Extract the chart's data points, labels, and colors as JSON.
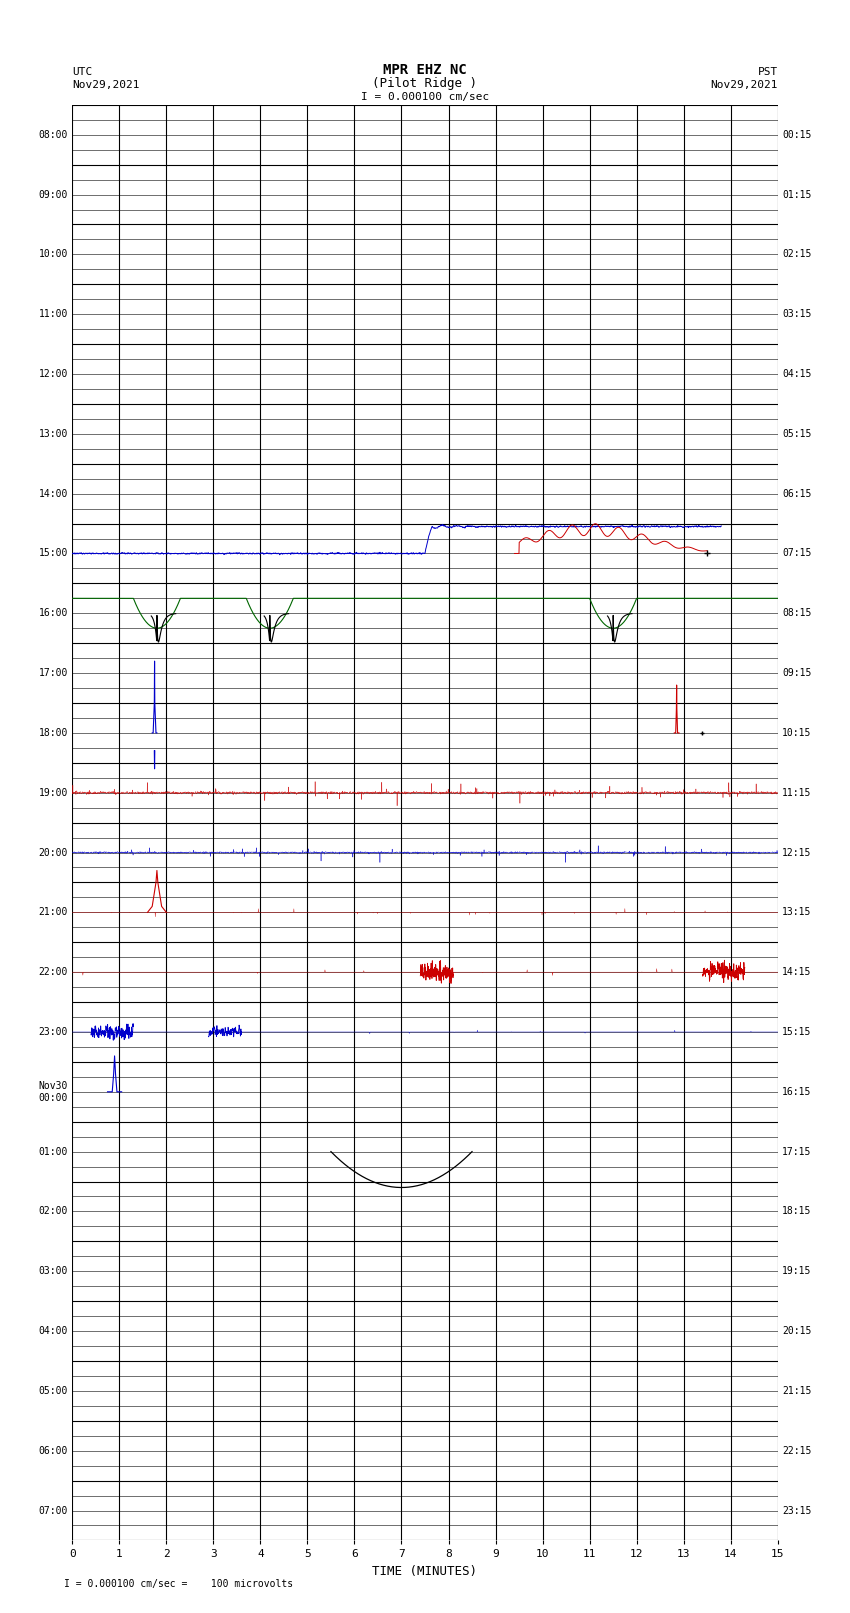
{
  "title_line1": "MPR EHZ NC",
  "title_line2": "(Pilot Ridge )",
  "title_scale": "I = 0.000100 cm/sec",
  "left_label_line1": "UTC",
  "left_label_line2": "Nov29,2021",
  "right_label_line1": "PST",
  "right_label_line2": "Nov29,2021",
  "bottom_note": "= 0.000100 cm/sec =    100 microvolts",
  "xlabel": "TIME (MINUTES)",
  "xlim": [
    0,
    15
  ],
  "xticks": [
    0,
    1,
    2,
    3,
    4,
    5,
    6,
    7,
    8,
    9,
    10,
    11,
    12,
    13,
    14,
    15
  ],
  "ytick_labels_left": [
    "08:00",
    "09:00",
    "10:00",
    "11:00",
    "12:00",
    "13:00",
    "14:00",
    "15:00",
    "16:00",
    "17:00",
    "18:00",
    "19:00",
    "20:00",
    "21:00",
    "22:00",
    "23:00",
    "Nov30\n00:00",
    "01:00",
    "02:00",
    "03:00",
    "04:00",
    "05:00",
    "06:00",
    "07:00"
  ],
  "ytick_labels_right": [
    "00:15",
    "01:15",
    "02:15",
    "03:15",
    "04:15",
    "05:15",
    "06:15",
    "07:15",
    "08:15",
    "09:15",
    "10:15",
    "11:15",
    "12:15",
    "13:15",
    "14:15",
    "15:15",
    "16:15",
    "17:15",
    "18:15",
    "19:15",
    "20:15",
    "21:15",
    "22:15",
    "23:15"
  ],
  "n_rows": 24,
  "sub_rows": 4,
  "figsize": [
    8.5,
    16.13
  ],
  "dpi": 100,
  "bg_color": "white",
  "major_grid_color": "#000000",
  "minor_grid_color": "#000000",
  "noise_seed": 1234
}
